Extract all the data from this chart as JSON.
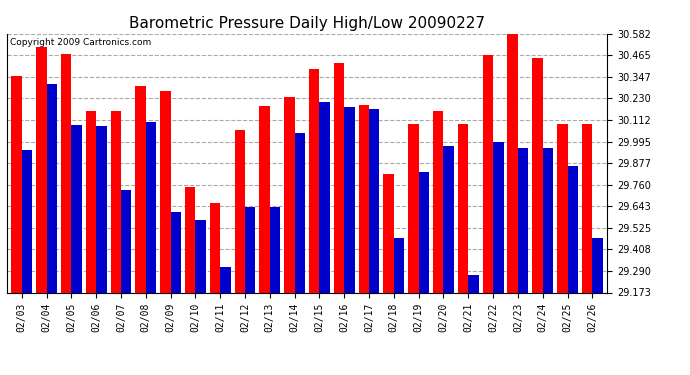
{
  "title": "Barometric Pressure Daily High/Low 20090227",
  "copyright": "Copyright 2009 Cartronics.com",
  "dates": [
    "02/03",
    "02/04",
    "02/05",
    "02/06",
    "02/07",
    "02/08",
    "02/09",
    "02/10",
    "02/11",
    "02/12",
    "02/13",
    "02/14",
    "02/15",
    "02/16",
    "02/17",
    "02/18",
    "02/19",
    "02/20",
    "02/21",
    "02/22",
    "02/23",
    "02/24",
    "02/25",
    "02/26"
  ],
  "highs": [
    30.35,
    30.51,
    30.47,
    30.16,
    30.16,
    30.3,
    30.27,
    29.75,
    29.66,
    30.06,
    30.19,
    30.24,
    30.39,
    30.42,
    30.195,
    29.82,
    30.09,
    30.16,
    30.09,
    30.465,
    30.582,
    30.45,
    30.09,
    30.09
  ],
  "lows": [
    29.95,
    30.31,
    30.085,
    30.08,
    29.73,
    30.1,
    29.61,
    29.57,
    29.31,
    29.64,
    29.64,
    30.04,
    30.21,
    30.185,
    30.17,
    29.47,
    29.83,
    29.97,
    29.27,
    29.99,
    29.96,
    29.96,
    29.86,
    29.47
  ],
  "high_color": "#ff0000",
  "low_color": "#0000cc",
  "bg_color": "#ffffff",
  "plot_bg_color": "#ffffff",
  "grid_color": "#aaaaaa",
  "yticks": [
    29.173,
    29.29,
    29.408,
    29.525,
    29.643,
    29.76,
    29.877,
    29.995,
    30.112,
    30.23,
    30.347,
    30.465,
    30.582
  ],
  "ymin": 29.173,
  "ymax": 30.582,
  "title_fontsize": 11,
  "tick_fontsize": 7,
  "bar_width": 0.42
}
